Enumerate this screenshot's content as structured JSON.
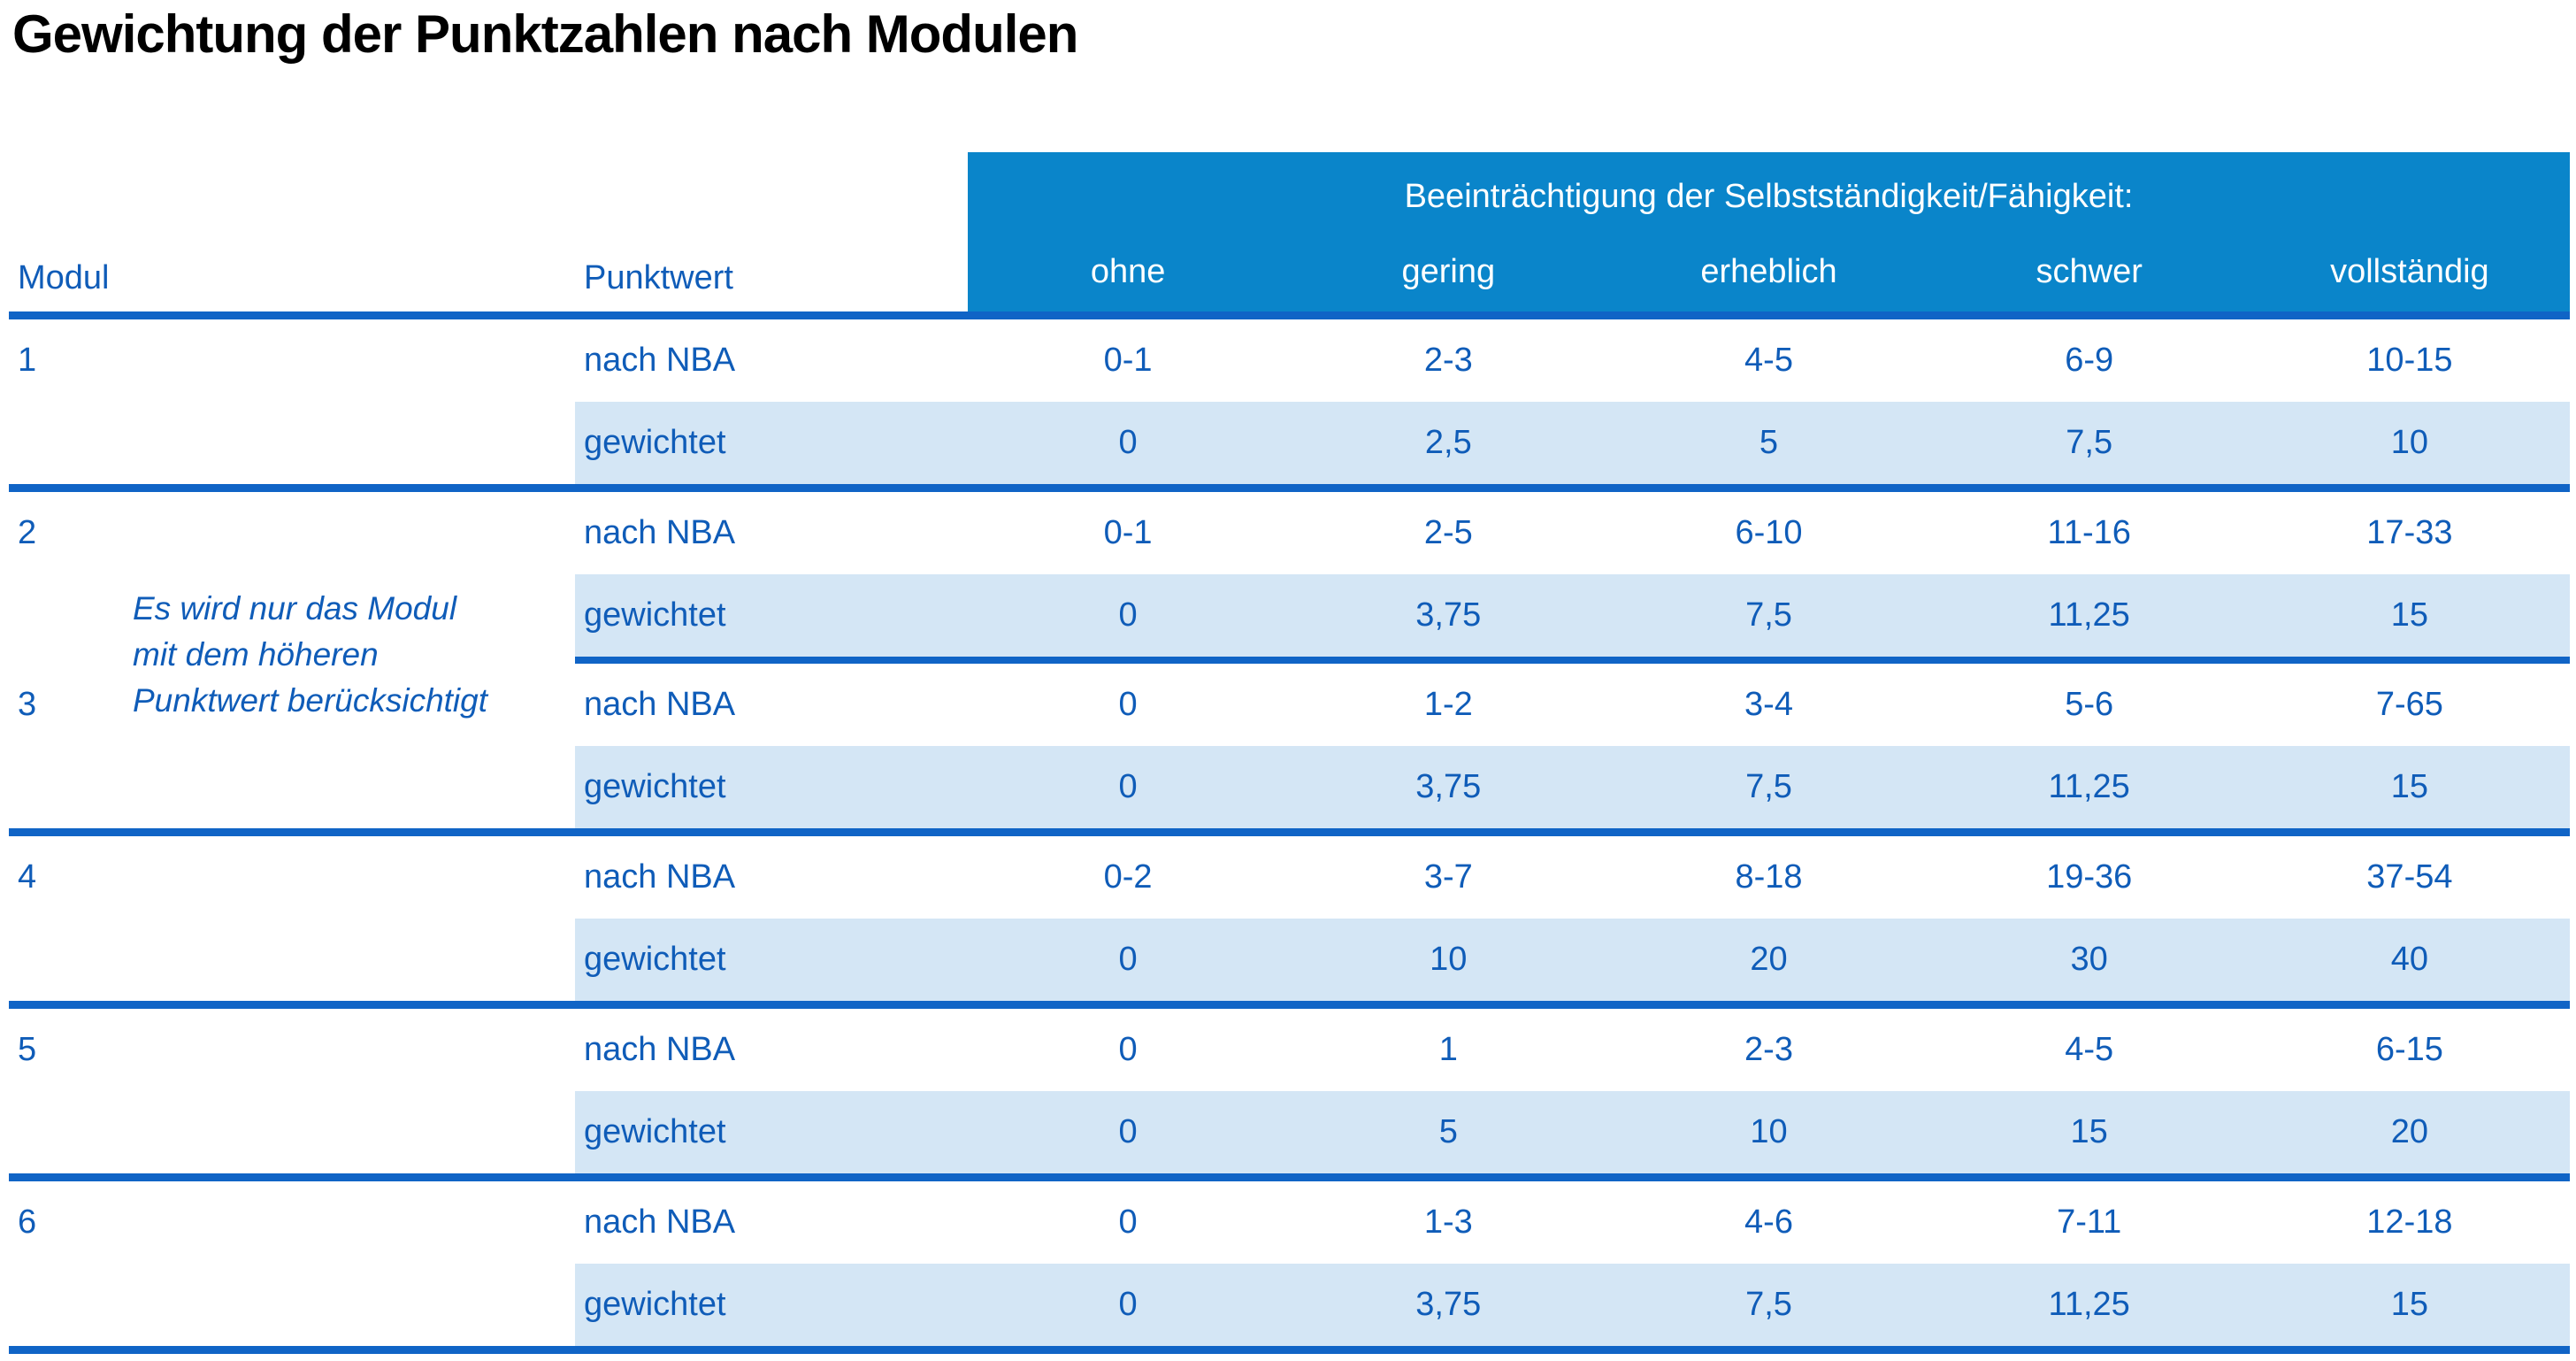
{
  "title": "Gewichtung der Punktzahlen nach Modulen",
  "colors": {
    "header-blue": "#0a85ca",
    "row-stripe": "#d4e6f5",
    "line-blue": "#1064c6",
    "text-blue": "#0f5cb8",
    "title-color": "#000000",
    "page-bg": "#ffffff"
  },
  "table": {
    "header": {
      "span_label": "Beeinträchtigung der Selbstständigkeit/Fähigkeit:",
      "col_modul": "Modul",
      "col_punktwert": "Punktwert",
      "severity_levels": [
        "ohne",
        "gering",
        "erheblich",
        "schwer",
        "vollständig"
      ]
    },
    "row_labels": {
      "nach_nba": "nach NBA",
      "gewichtet": "gewichtet"
    },
    "note": [
      "Es wird nur das Modul",
      "mit dem höheren",
      "Punktwert berücksichtigt"
    ],
    "modules": [
      {
        "number": "1",
        "nach_nba": [
          "0-1",
          "2-3",
          "4-5",
          "6-9",
          "10-15"
        ],
        "gewichtet": [
          "0",
          "2,5",
          "5",
          "7,5",
          "10"
        ]
      },
      {
        "number": "2",
        "nach_nba": [
          "0-1",
          "2-5",
          "6-10",
          "11-16",
          "17-33"
        ],
        "gewichtet": [
          "0",
          "3,75",
          "7,5",
          "11,25",
          "15"
        ]
      },
      {
        "number": "3",
        "nach_nba": [
          "0",
          "1-2",
          "3-4",
          "5-6",
          "7-65"
        ],
        "gewichtet": [
          "0",
          "3,75",
          "7,5",
          "11,25",
          "15"
        ]
      },
      {
        "number": "4",
        "nach_nba": [
          "0-2",
          "3-7",
          "8-18",
          "19-36",
          "37-54"
        ],
        "gewichtet": [
          "0",
          "10",
          "20",
          "30",
          "40"
        ]
      },
      {
        "number": "5",
        "nach_nba": [
          "0",
          "1",
          "2-3",
          "4-5",
          "6-15"
        ],
        "gewichtet": [
          "0",
          "5",
          "10",
          "15",
          "20"
        ]
      },
      {
        "number": "6",
        "nach_nba": [
          "0",
          "1-3",
          "4-6",
          "7-11",
          "12-18"
        ],
        "gewichtet": [
          "0",
          "3,75",
          "7,5",
          "11,25",
          "15"
        ]
      }
    ]
  }
}
